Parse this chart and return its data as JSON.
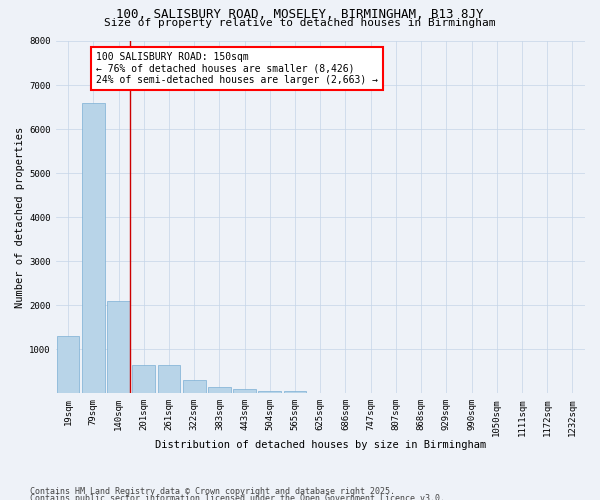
{
  "title": "100, SALISBURY ROAD, MOSELEY, BIRMINGHAM, B13 8JY",
  "subtitle": "Size of property relative to detached houses in Birmingham",
  "xlabel": "Distribution of detached houses by size in Birmingham",
  "ylabel": "Number of detached properties",
  "categories": [
    "19sqm",
    "79sqm",
    "140sqm",
    "201sqm",
    "261sqm",
    "322sqm",
    "383sqm",
    "443sqm",
    "504sqm",
    "565sqm",
    "625sqm",
    "686sqm",
    "747sqm",
    "807sqm",
    "868sqm",
    "929sqm",
    "990sqm",
    "1050sqm",
    "1111sqm",
    "1172sqm",
    "1232sqm"
  ],
  "values": [
    1300,
    6600,
    2100,
    650,
    650,
    300,
    150,
    100,
    50,
    50,
    0,
    0,
    0,
    0,
    0,
    0,
    0,
    0,
    0,
    0,
    0
  ],
  "bar_color": "#b8d4e8",
  "bar_edge_color": "#7bafd4",
  "vline_x_index": 2,
  "vline_color": "#cc0000",
  "annotation_text": "100 SALISBURY ROAD: 150sqm\n← 76% of detached houses are smaller (8,426)\n24% of semi-detached houses are larger (2,663) →",
  "annotation_box_color": "white",
  "annotation_box_edge_color": "red",
  "ylim": [
    0,
    8000
  ],
  "yticks": [
    0,
    1000,
    2000,
    3000,
    4000,
    5000,
    6000,
    7000,
    8000
  ],
  "footnote1": "Contains HM Land Registry data © Crown copyright and database right 2025.",
  "footnote2": "Contains public sector information licensed under the Open Government Licence v3.0.",
  "background_color": "#eef2f8",
  "title_fontsize": 9,
  "subtitle_fontsize": 8,
  "axis_label_fontsize": 7.5,
  "tick_fontsize": 6.5,
  "annotation_fontsize": 7,
  "footnote_fontsize": 6
}
